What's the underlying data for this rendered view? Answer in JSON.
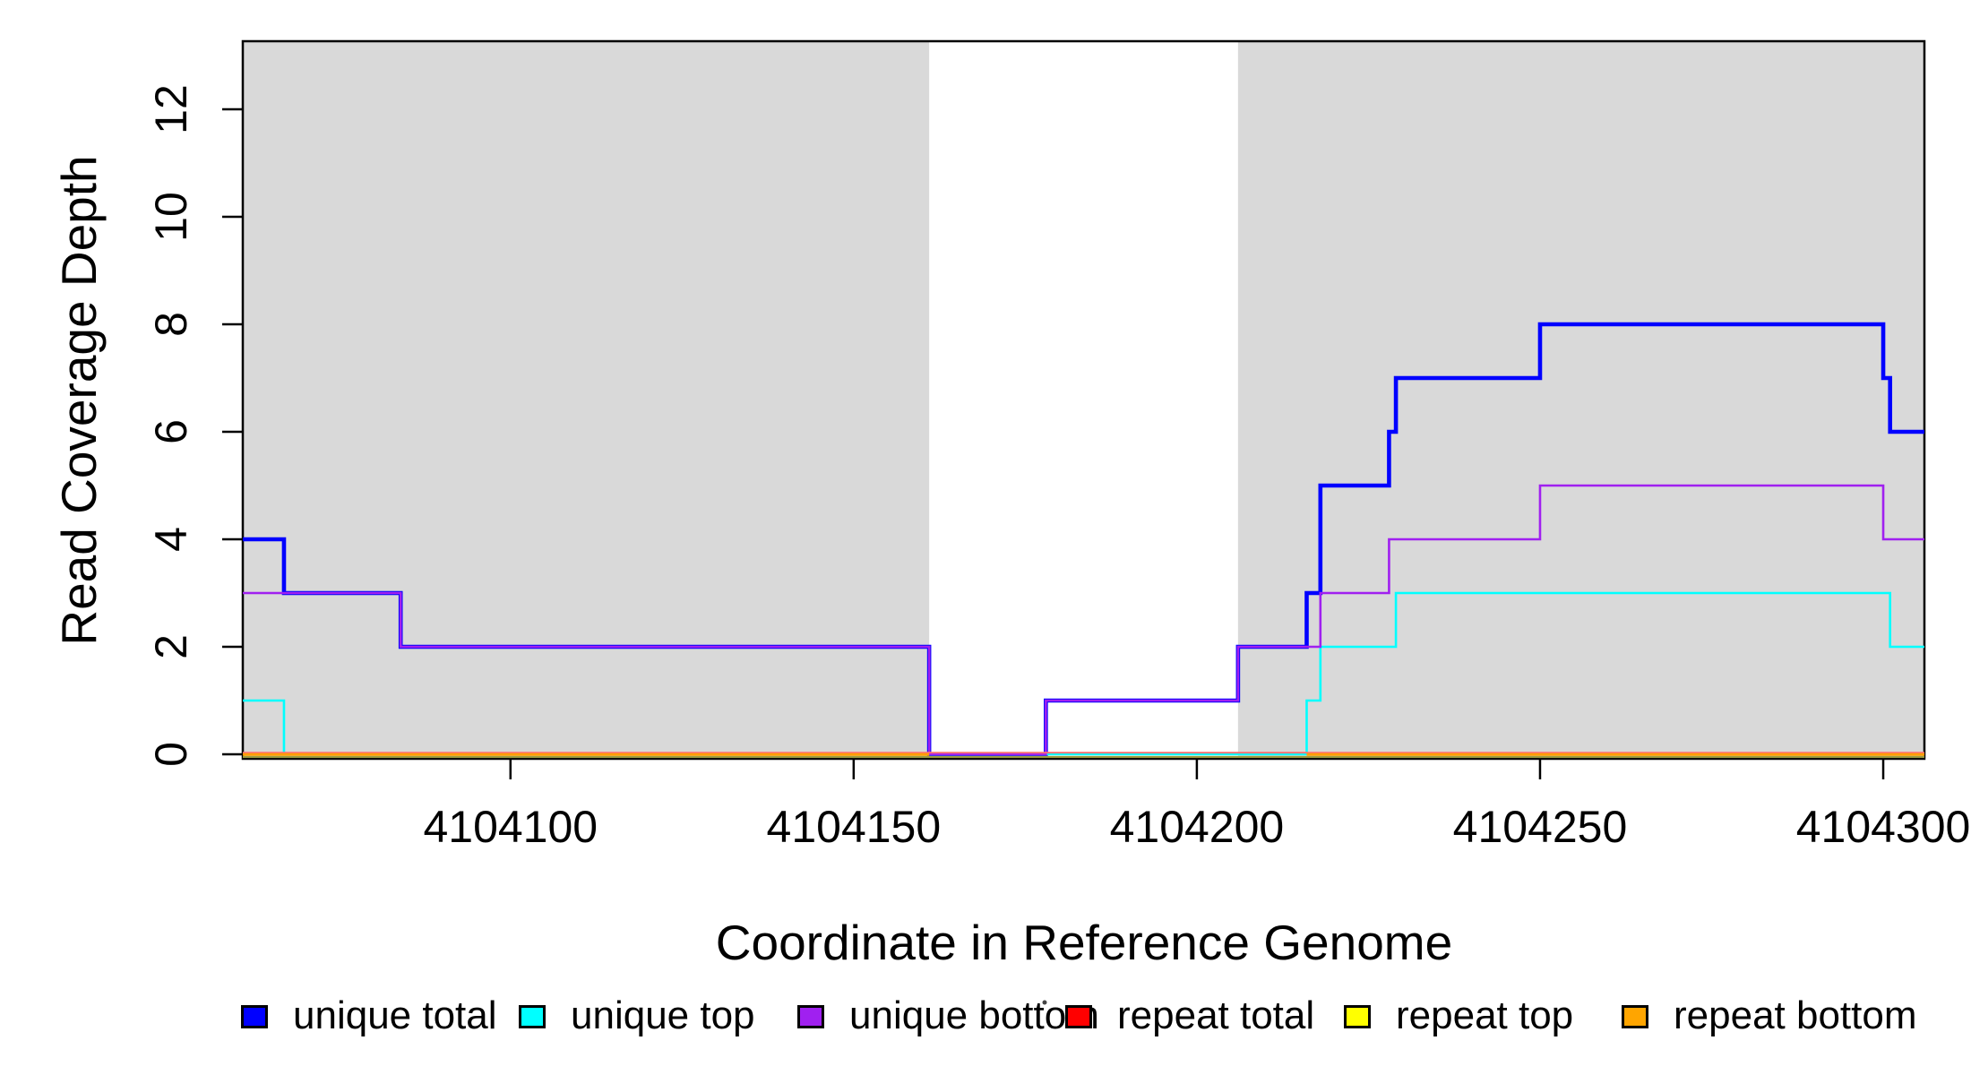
{
  "figure": {
    "background": "#ffffff",
    "text_color": "#000000"
  },
  "chart_data": {
    "type": "line",
    "subtype": "step",
    "title": "",
    "xlabel": "Coordinate in Reference Genome",
    "ylabel": "Read Coverage Depth",
    "xlim": [
      4104061,
      4104306
    ],
    "ylim": [
      0,
      13.25
    ],
    "x_ticks": [
      4104100,
      4104150,
      4104200,
      4104250,
      4104300
    ],
    "y_ticks": [
      0,
      2,
      4,
      6,
      8,
      10,
      12
    ],
    "grid": false,
    "legend_position": "bottom",
    "shaded_regions": [
      {
        "name": "shaded-region-left",
        "x0": 4104061,
        "x1": 4104161,
        "color": "#d9d9d9"
      },
      {
        "name": "shaded-region-right",
        "x0": 4104206,
        "x1": 4104306,
        "color": "#d9d9d9"
      }
    ],
    "series": [
      {
        "name": "unique total",
        "color": "#0000ff",
        "width": 4.6,
        "steps": [
          [
            4104061,
            4
          ],
          [
            4104067,
            3
          ],
          [
            4104084,
            2
          ],
          [
            4104161,
            0
          ],
          [
            4104178,
            1
          ],
          [
            4104206,
            2
          ],
          [
            4104216,
            3
          ],
          [
            4104218,
            5
          ],
          [
            4104228,
            6
          ],
          [
            4104229,
            7
          ],
          [
            4104250,
            8
          ],
          [
            4104300,
            7
          ],
          [
            4104301,
            6
          ],
          [
            4104306,
            6
          ]
        ]
      },
      {
        "name": "unique top",
        "color": "#00ffff",
        "width": 2.6,
        "steps": [
          [
            4104061,
            1
          ],
          [
            4104067,
            0
          ],
          [
            4104216,
            1
          ],
          [
            4104218,
            2
          ],
          [
            4104229,
            3
          ],
          [
            4104301,
            2
          ],
          [
            4104306,
            2
          ]
        ]
      },
      {
        "name": "unique bottom",
        "color": "#a020f0",
        "width": 2.6,
        "steps": [
          [
            4104061,
            3
          ],
          [
            4104084,
            2
          ],
          [
            4104161,
            0
          ],
          [
            4104178,
            1
          ],
          [
            4104206,
            2
          ],
          [
            4104218,
            3
          ],
          [
            4104228,
            4
          ],
          [
            4104250,
            5
          ],
          [
            4104300,
            4
          ],
          [
            4104306,
            4
          ]
        ]
      },
      {
        "name": "repeat total",
        "color": "#ff0000",
        "width": 1.8,
        "render_dy": -1.8,
        "render_color": "#ff7070",
        "steps": [
          [
            4104061,
            0
          ],
          [
            4104306,
            0
          ]
        ]
      },
      {
        "name": "repeat top",
        "color": "#ffff00",
        "width": 2.2,
        "render_dy": 3.0,
        "render_color": "#9c9c40",
        "steps": [
          [
            4104061,
            0
          ],
          [
            4104306,
            0
          ]
        ]
      },
      {
        "name": "repeat bottom",
        "color": "#ffa500",
        "width": 3.0,
        "render_dy": 0.3,
        "render_color": "#ff9e00",
        "render_segments": [
          [
            4104061,
            4104161
          ],
          [
            4104216,
            4104306
          ]
        ],
        "steps": [
          [
            4104061,
            0
          ],
          [
            4104306,
            0
          ]
        ]
      }
    ],
    "legend": [
      {
        "label": "unique total",
        "color": "#0000ff"
      },
      {
        "label": "unique top",
        "color": "#00ffff"
      },
      {
        "label": "unique bottom",
        "color": "#a020f0"
      },
      {
        "label": "repeat total",
        "color": "#ff0000"
      },
      {
        "label": "repeat top",
        "color": "#ffff00"
      },
      {
        "label": "repeat bottom",
        "color": "#ffa500"
      }
    ]
  }
}
